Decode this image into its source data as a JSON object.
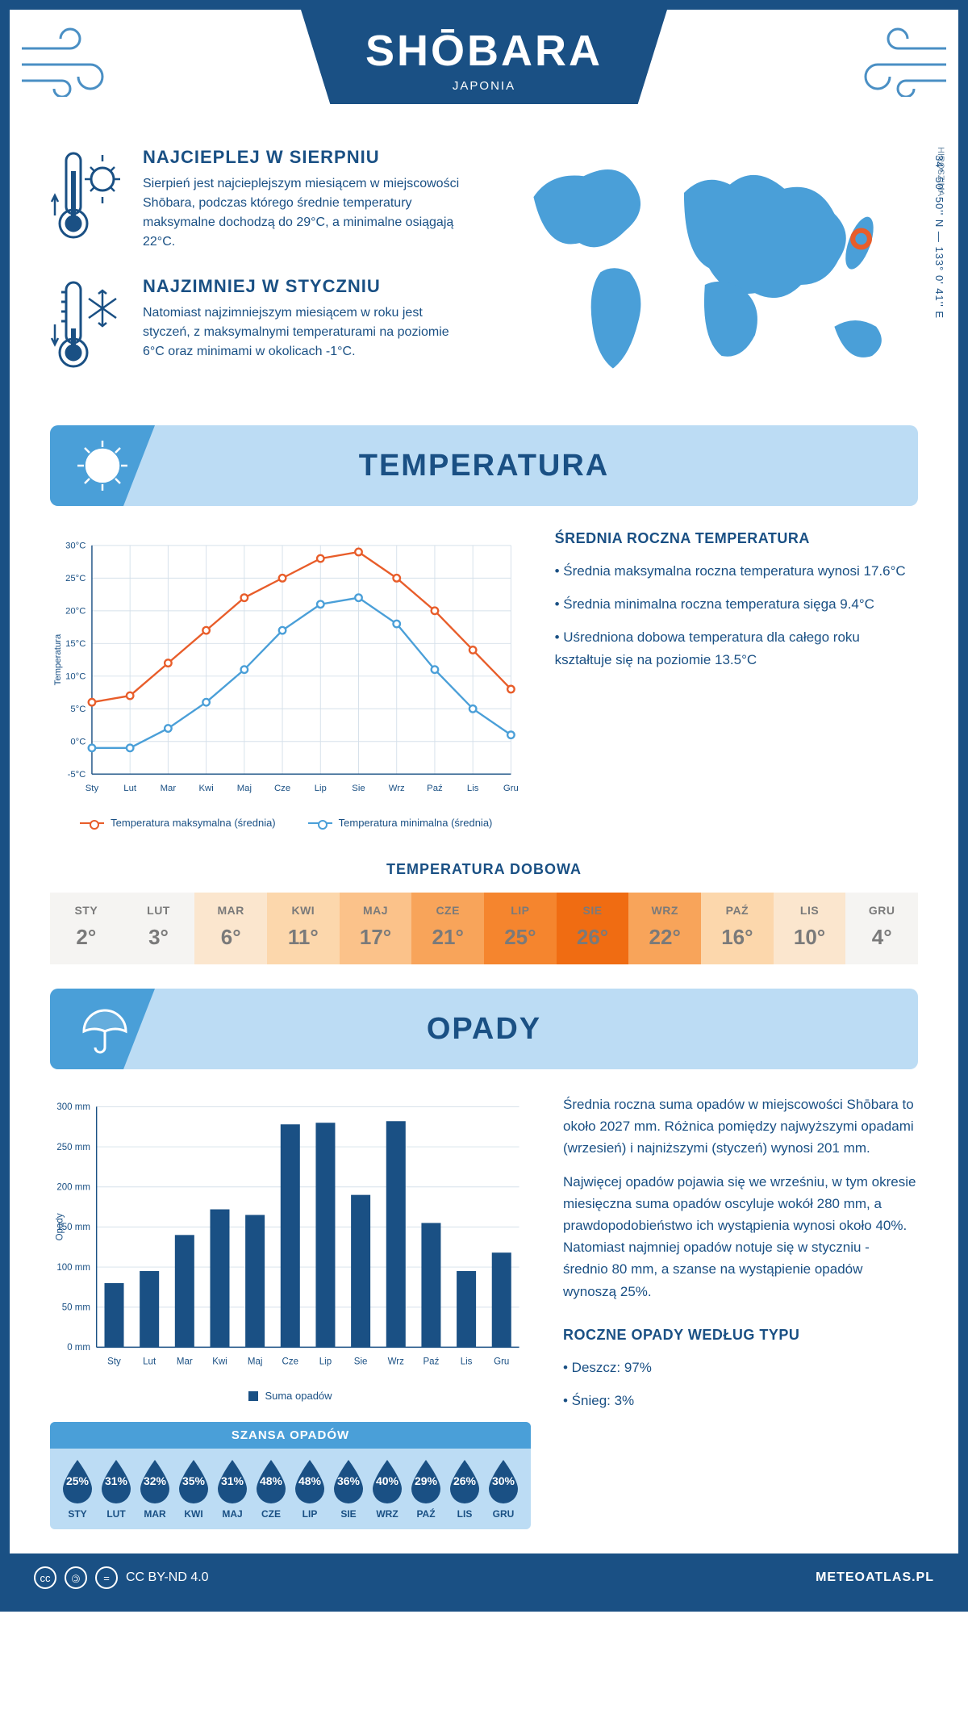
{
  "header": {
    "title": "SHŌBARA",
    "subtitle": "JAPONIA",
    "coords": "34° 50' 50'' N — 133° 0' 41'' E",
    "region": "HIROSZIMA"
  },
  "facts": {
    "hot": {
      "title": "NAJCIEPLEJ W SIERPNIU",
      "text": "Sierpień jest najcieplejszym miesiącem w miejscowości Shōbara, podczas którego średnie temperatury maksymalne dochodzą do 29°C, a minimalne osiągają 22°C."
    },
    "cold": {
      "title": "NAJZIMNIEJ W STYCZNIU",
      "text": "Natomiast najzimniejszym miesiącem w roku jest styczeń, z maksymalnymi temperaturami na poziomie 6°C oraz minimami w okolicach -1°C."
    }
  },
  "sections": {
    "temperature": "TEMPERATURA",
    "precip": "OPADY"
  },
  "temp_chart": {
    "type": "line",
    "months": [
      "Sty",
      "Lut",
      "Mar",
      "Kwi",
      "Maj",
      "Cze",
      "Lip",
      "Sie",
      "Wrz",
      "Paź",
      "Lis",
      "Gru"
    ],
    "max_series": {
      "label": "Temperatura maksymalna (średnia)",
      "color": "#e85d2a",
      "values": [
        6,
        7,
        12,
        17,
        22,
        25,
        28,
        29,
        25,
        20,
        14,
        8
      ]
    },
    "min_series": {
      "label": "Temperatura minimalna (średnia)",
      "color": "#4a9fd8",
      "values": [
        -1,
        -1,
        2,
        6,
        11,
        17,
        21,
        22,
        18,
        11,
        5,
        1
      ]
    },
    "ylabel": "Temperatura",
    "ymin": -5,
    "ymax": 30,
    "ystep": 5,
    "grid_color": "#d5e0ea",
    "bg": "#ffffff"
  },
  "temp_side": {
    "title": "ŚREDNIA ROCZNA TEMPERATURA",
    "b1": "• Średnia maksymalna roczna temperatura wynosi 17.6°C",
    "b2": "• Średnia minimalna roczna temperatura sięga 9.4°C",
    "b3": "• Uśredniona dobowa temperatura dla całego roku kształtuje się na poziomie 13.5°C"
  },
  "daily": {
    "title": "TEMPERATURA DOBOWA",
    "months": [
      "STY",
      "LUT",
      "MAR",
      "KWI",
      "MAJ",
      "CZE",
      "LIP",
      "SIE",
      "WRZ",
      "PAŹ",
      "LIS",
      "GRU"
    ],
    "values": [
      "2°",
      "3°",
      "6°",
      "11°",
      "17°",
      "21°",
      "25°",
      "26°",
      "22°",
      "16°",
      "10°",
      "4°"
    ],
    "colors": [
      "#f5f4f2",
      "#f5f4f2",
      "#fbe6ce",
      "#fcd7ac",
      "#fbc28a",
      "#f8a45a",
      "#f5852e",
      "#f06c12",
      "#f8a45a",
      "#fcd7ac",
      "#fbe6ce",
      "#f5f4f2"
    ]
  },
  "precip_chart": {
    "type": "bar",
    "months": [
      "Sty",
      "Lut",
      "Mar",
      "Kwi",
      "Maj",
      "Cze",
      "Lip",
      "Sie",
      "Wrz",
      "Paź",
      "Lis",
      "Gru"
    ],
    "values": [
      80,
      95,
      140,
      172,
      165,
      278,
      280,
      190,
      282,
      155,
      95,
      118
    ],
    "color": "#1a5084",
    "ylabel": "Opady",
    "legend": "Suma opadów",
    "ymin": 0,
    "ymax": 300,
    "ystep": 50,
    "grid_color": "#d5e0ea"
  },
  "precip_side": {
    "p1": "Średnia roczna suma opadów w miejscowości Shōbara to około 2027 mm. Różnica pomiędzy najwyższymi opadami (wrzesień) i najniższymi (styczeń) wynosi 201 mm.",
    "p2": "Najwięcej opadów pojawia się we wrześniu, w tym okresie miesięczna suma opadów oscyluje wokół 280 mm, a prawdopodobieństwo ich wystąpienia wynosi około 40%. Natomiast najmniej opadów notuje się w styczniu - średnio 80 mm, a szanse na wystąpienie opadów wynoszą 25%.",
    "type_title": "ROCZNE OPADY WEDŁUG TYPU",
    "type_b1": "• Deszcz: 97%",
    "type_b2": "• Śnieg: 3%"
  },
  "chance": {
    "title": "SZANSA OPADÓW",
    "months": [
      "STY",
      "LUT",
      "MAR",
      "KWI",
      "MAJ",
      "CZE",
      "LIP",
      "SIE",
      "WRZ",
      "PAŹ",
      "LIS",
      "GRU"
    ],
    "values": [
      "25%",
      "31%",
      "32%",
      "35%",
      "31%",
      "48%",
      "48%",
      "36%",
      "40%",
      "29%",
      "26%",
      "30%"
    ],
    "drop_color": "#1a5084"
  },
  "footer": {
    "license": "CC BY-ND 4.0",
    "site": "METEOATLAS.PL"
  }
}
